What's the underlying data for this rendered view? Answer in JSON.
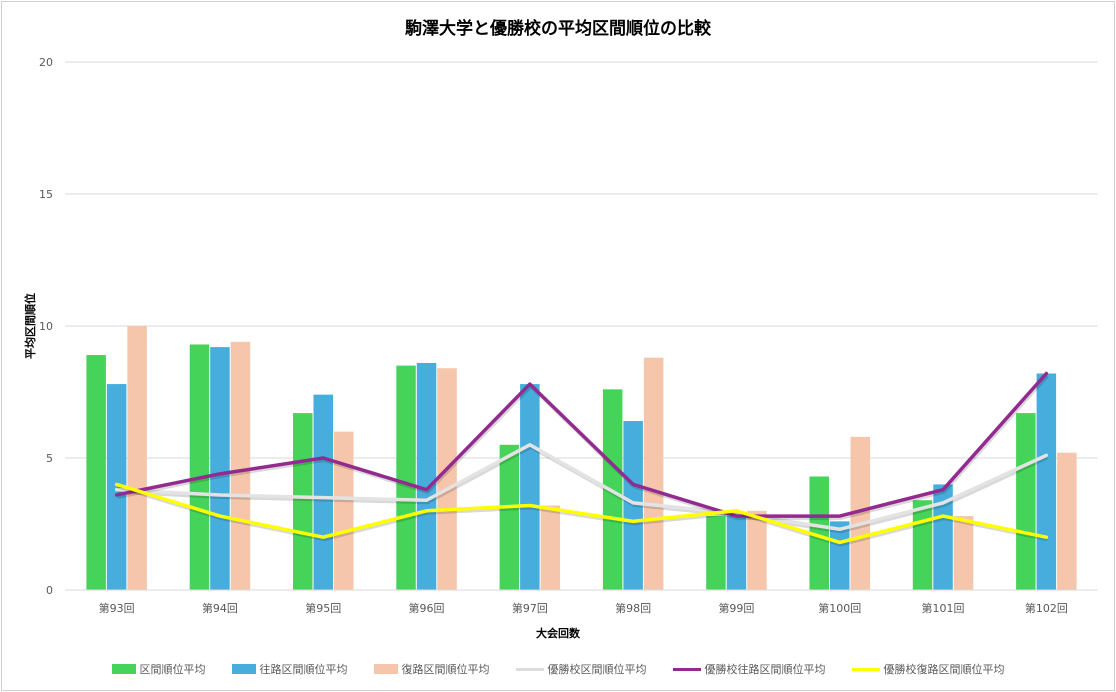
{
  "chart_data": {
    "type": "bar",
    "title": "駒澤大学と優勝校の平均区間順位の比較",
    "xlabel": "大会回数",
    "ylabel": "平均区間順位",
    "ylim": [
      0,
      20
    ],
    "yticks": [
      "0",
      "5",
      "10",
      "15",
      "20"
    ],
    "grid": true,
    "legend_position": "bottom",
    "categories": [
      "第93回",
      "第94回",
      "第95回",
      "第96回",
      "第97回",
      "第98回",
      "第99回",
      "第100回",
      "第101回",
      "第102回"
    ],
    "series": [
      {
        "name": "区間順位平均",
        "kind": "bar",
        "color": "#46d35a",
        "values": [
          8.9,
          9.3,
          6.7,
          8.5,
          5.5,
          7.6,
          2.8,
          4.3,
          3.4,
          6.7
        ]
      },
      {
        "name": "往路区間順位平均",
        "kind": "bar",
        "color": "#46addc",
        "values": [
          7.8,
          9.2,
          7.4,
          8.6,
          7.8,
          6.4,
          2.8,
          2.6,
          4.0,
          8.2
        ]
      },
      {
        "name": "復路区間順位平均",
        "kind": "bar",
        "color": "#f5c6ab",
        "values": [
          10.0,
          9.4,
          6.0,
          8.4,
          3.2,
          8.8,
          3.0,
          5.8,
          2.8,
          5.2
        ]
      },
      {
        "name": "優勝校区間順位平均",
        "kind": "line",
        "color": "#e3e3e3",
        "values": [
          3.8,
          3.6,
          3.5,
          3.4,
          5.5,
          3.3,
          2.9,
          2.3,
          3.3,
          5.1
        ]
      },
      {
        "name": "優勝校往路区間順位平均",
        "kind": "line",
        "color": "#932a8f",
        "values": [
          3.6,
          4.4,
          5.0,
          3.8,
          7.8,
          4.0,
          2.8,
          2.8,
          3.8,
          8.2
        ]
      },
      {
        "name": "優勝校復路区間順位平均",
        "kind": "line",
        "color": "#ffff00",
        "values": [
          4.0,
          2.8,
          2.0,
          3.0,
          3.2,
          2.6,
          3.0,
          1.8,
          2.8,
          2.0
        ]
      }
    ]
  }
}
